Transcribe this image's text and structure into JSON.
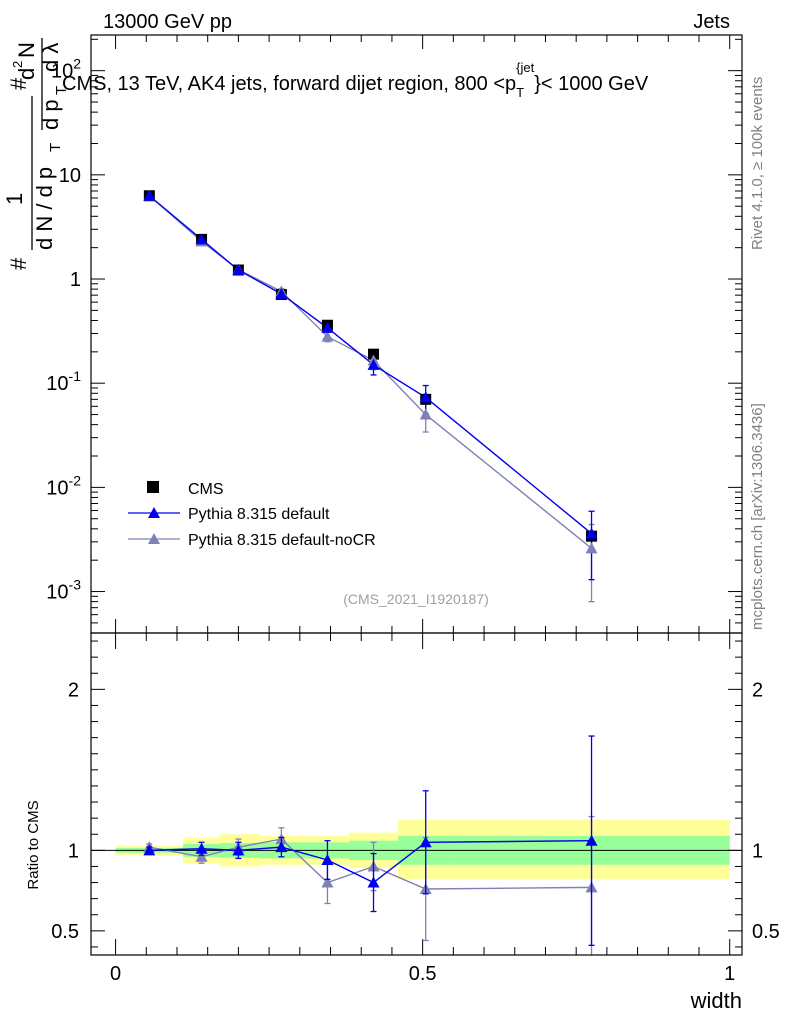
{
  "header": {
    "left": "13000 GeV pp",
    "right": "Jets"
  },
  "side_labels": {
    "rivet": "Rivet 4.1.0, ≥ 100k events",
    "mcplots": "mcplots.cern.ch [arXiv:1306.3436]"
  },
  "chart_data": [
    {
      "type": "line",
      "title": "CMS, 13 TeV, AK4 jets, forward dijet region, 800 <p_T^{jet}< 1000 GeV",
      "title_parts": {
        "main": "CMS, 13 TeV, AK4 jets, forward dijet region, 800 <p",
        "sub": "T",
        "sup": "{jet",
        "tail": "}< 1000 GeV"
      },
      "ylabel": "1 / (dN / dp_T) · d²N / (dp_T dλ)",
      "ylabel_parts": {
        "hash": "#",
        "one": "1",
        "den": "d N / d p",
        "T": "T",
        "num1": "d",
        "two": "2",
        "num2": "N",
        "den2": "d p",
        "lam": "d λ"
      },
      "yscale": "log",
      "ylim": [
        0.0004,
        220
      ],
      "xlim": [
        -0.04,
        1.02
      ],
      "y_tick_labels": [
        "10^2",
        "10",
        "1",
        "10^-1",
        "10^-2",
        "10^-3"
      ],
      "watermark": "(CMS_2021_I1920187)",
      "legend_position": "bottom-left",
      "series": [
        {
          "name": "CMS",
          "color": "#000000",
          "marker": "square",
          "x": [
            0.055,
            0.14,
            0.2,
            0.27,
            0.345,
            0.42,
            0.505,
            0.775
          ],
          "y": [
            6.3,
            2.4,
            1.22,
            0.71,
            0.36,
            0.19,
            0.07,
            0.0034
          ],
          "bin_edges": [
            0,
            0.11,
            0.17,
            0.235,
            0.31,
            0.38,
            0.46,
            0.55,
            1.0
          ]
        },
        {
          "name": "Pythia 8.315 default",
          "color": "#0000ee",
          "marker": "triangle",
          "x": [
            0.055,
            0.14,
            0.2,
            0.27,
            0.345,
            0.42,
            0.505,
            0.775
          ],
          "y": [
            6.3,
            2.4,
            1.22,
            0.72,
            0.34,
            0.15,
            0.073,
            0.0036
          ],
          "yerr": [
            0.2,
            0.08,
            0.05,
            0.04,
            0.03,
            0.03,
            0.022,
            0.0023
          ]
        },
        {
          "name": "Pythia 8.315 default-noCR",
          "color": "#8080b8",
          "marker": "triangle",
          "x": [
            0.055,
            0.14,
            0.2,
            0.27,
            0.345,
            0.42,
            0.505,
            0.775
          ],
          "y": [
            6.3,
            2.3,
            1.23,
            0.76,
            0.28,
            0.165,
            0.05,
            0.0026
          ],
          "yerr": [
            0.2,
            0.08,
            0.05,
            0.05,
            0.03,
            0.03,
            0.016,
            0.0018
          ]
        }
      ]
    },
    {
      "type": "line",
      "title": "",
      "xlabel": "width",
      "ylabel": "Ratio to CMS",
      "ylim": [
        0.35,
        2.35
      ],
      "xlim": [
        -0.04,
        1.02
      ],
      "y_ticks": [
        0.5,
        1,
        2
      ],
      "y_tick_labels": [
        "0.5",
        "1",
        "2"
      ],
      "x_ticks": [
        0,
        0.5,
        1
      ],
      "x_tick_labels": [
        "0",
        "0.5",
        "1"
      ],
      "bands": {
        "bin_edges": [
          0,
          0.11,
          0.17,
          0.235,
          0.31,
          0.38,
          0.46,
          0.55,
          1.0
        ],
        "green_low": [
          0.985,
          0.96,
          0.955,
          0.95,
          0.95,
          0.94,
          0.91,
          0.91
        ],
        "green_high": [
          1.015,
          1.04,
          1.045,
          1.05,
          1.05,
          1.06,
          1.09,
          1.09
        ],
        "yellow_low": [
          0.97,
          0.92,
          0.9,
          0.91,
          0.91,
          0.89,
          0.82,
          0.82
        ],
        "yellow_high": [
          1.03,
          1.08,
          1.1,
          1.09,
          1.09,
          1.11,
          1.19,
          1.19
        ]
      },
      "series": [
        {
          "name": "Pythia 8.315 default",
          "color": "#0000ee",
          "x": [
            0.055,
            0.14,
            0.2,
            0.27,
            0.345,
            0.42,
            0.505,
            0.775
          ],
          "y": [
            1.0,
            1.01,
            1.0,
            1.02,
            0.94,
            0.8,
            1.05,
            1.06
          ],
          "yerr": [
            0.02,
            0.04,
            0.05,
            0.06,
            0.12,
            0.18,
            0.32,
            0.65
          ]
        },
        {
          "name": "Pythia 8.315 default-noCR",
          "color": "#8080b8",
          "x": [
            0.055,
            0.14,
            0.2,
            0.27,
            0.345,
            0.42,
            0.505,
            0.775
          ],
          "y": [
            1.02,
            0.96,
            1.02,
            1.07,
            0.8,
            0.9,
            0.76,
            0.77
          ],
          "yerr": [
            0.02,
            0.04,
            0.05,
            0.07,
            0.13,
            0.15,
            0.32,
            0.44
          ]
        }
      ]
    }
  ]
}
